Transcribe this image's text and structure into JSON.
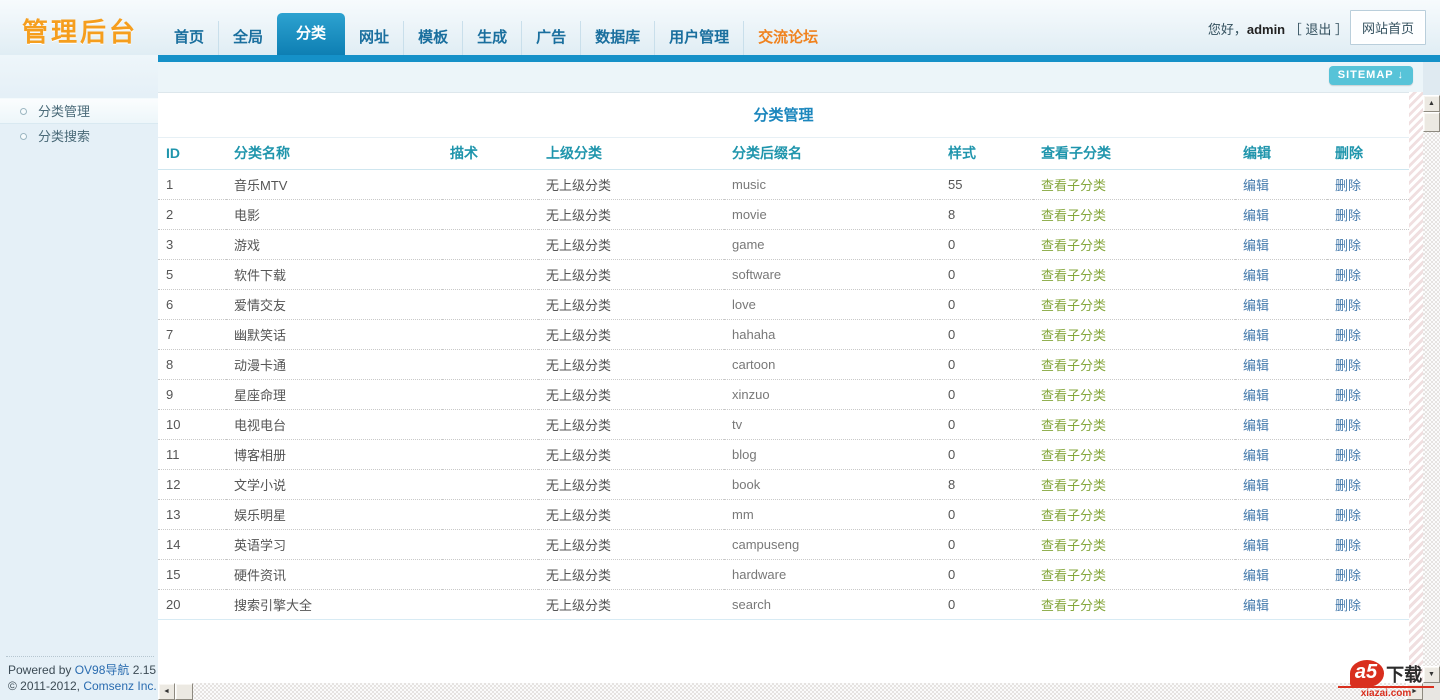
{
  "header": {
    "logo": "管理后台",
    "nav": [
      {
        "key": "home",
        "label": "首页"
      },
      {
        "key": "global",
        "label": "全局"
      },
      {
        "key": "category",
        "label": "分类",
        "active": true
      },
      {
        "key": "urls",
        "label": "网址"
      },
      {
        "key": "template",
        "label": "模板"
      },
      {
        "key": "generate",
        "label": "生成"
      },
      {
        "key": "ads",
        "label": "广告"
      },
      {
        "key": "database",
        "label": "数据库"
      },
      {
        "key": "users",
        "label": "用户管理"
      },
      {
        "key": "forum",
        "label": "交流论坛",
        "highlight": true
      }
    ],
    "greeting_prefix": "您好，",
    "username": "admin",
    "logout_label": "［ 退出 ］",
    "home_button": "网站首页"
  },
  "sidebar": {
    "items": [
      {
        "key": "category-manage",
        "label": "分类管理",
        "active": true
      },
      {
        "key": "category-search",
        "label": "分类搜索",
        "active": false
      }
    ]
  },
  "toolbar": {
    "sitemap_label": "SITEMAP",
    "sitemap_arrow": "↓"
  },
  "main": {
    "title": "分类管理",
    "table": {
      "headers": [
        "ID",
        "分类名称",
        "描术",
        "上级分类",
        "分类后缀名",
        "样式",
        "查看子分类",
        "编辑",
        "删除"
      ],
      "view_sub_label": "查看子分类",
      "edit_label": "编辑",
      "delete_label": "删除",
      "rows": [
        {
          "id": "1",
          "name": "音乐MTV",
          "desc": "",
          "parent": "无上级分类",
          "suffix": "music",
          "style": "55"
        },
        {
          "id": "2",
          "name": "电影",
          "desc": "",
          "parent": "无上级分类",
          "suffix": "movie",
          "style": "8"
        },
        {
          "id": "3",
          "name": "游戏",
          "desc": "",
          "parent": "无上级分类",
          "suffix": "game",
          "style": "0"
        },
        {
          "id": "5",
          "name": "软件下载",
          "desc": "",
          "parent": "无上级分类",
          "suffix": "software",
          "style": "0"
        },
        {
          "id": "6",
          "name": "爱情交友",
          "desc": "",
          "parent": "无上级分类",
          "suffix": "love",
          "style": "0"
        },
        {
          "id": "7",
          "name": "幽默笑话",
          "desc": "",
          "parent": "无上级分类",
          "suffix": "hahaha",
          "style": "0"
        },
        {
          "id": "8",
          "name": "动漫卡通",
          "desc": "",
          "parent": "无上级分类",
          "suffix": "cartoon",
          "style": "0"
        },
        {
          "id": "9",
          "name": "星座命理",
          "desc": "",
          "parent": "无上级分类",
          "suffix": "xinzuo",
          "style": "0"
        },
        {
          "id": "10",
          "name": "电视电台",
          "desc": "",
          "parent": "无上级分类",
          "suffix": "tv",
          "style": "0"
        },
        {
          "id": "11",
          "name": "博客相册",
          "desc": "",
          "parent": "无上级分类",
          "suffix": "blog",
          "style": "0"
        },
        {
          "id": "12",
          "name": "文学小说",
          "desc": "",
          "parent": "无上级分类",
          "suffix": "book",
          "style": "8"
        },
        {
          "id": "13",
          "name": "娱乐明星",
          "desc": "",
          "parent": "无上级分类",
          "suffix": "mm",
          "style": "0"
        },
        {
          "id": "14",
          "name": "英语学习",
          "desc": "",
          "parent": "无上级分类",
          "suffix": "campuseng",
          "style": "0"
        },
        {
          "id": "15",
          "name": "硬件资讯",
          "desc": "",
          "parent": "无上级分类",
          "suffix": "hardware",
          "style": "0"
        },
        {
          "id": "20",
          "name": "搜索引擎大全",
          "desc": "",
          "parent": "无上级分类",
          "suffix": "search",
          "style": "0"
        }
      ]
    }
  },
  "footer": {
    "powered_prefix": "Powered by ",
    "powered_link": "OV98导航",
    "powered_suffix": " 2.15",
    "copyright_prefix": "© 2011-2012, ",
    "copyright_link": "Comsenz Inc."
  },
  "watermark": {
    "mark": "a5",
    "text": "下载",
    "domain": "xiazai.com"
  },
  "colors": {
    "accent_blue": "#1591c8",
    "logo_orange": "#f59e1e",
    "nav_highlight_orange": "#f0821e",
    "title_blue": "#1b86bd",
    "table_head_teal": "#1f95ac",
    "link_green": "#85a73c",
    "link_blue": "#4479ab",
    "sitemap_teal": "#57c3d8"
  }
}
